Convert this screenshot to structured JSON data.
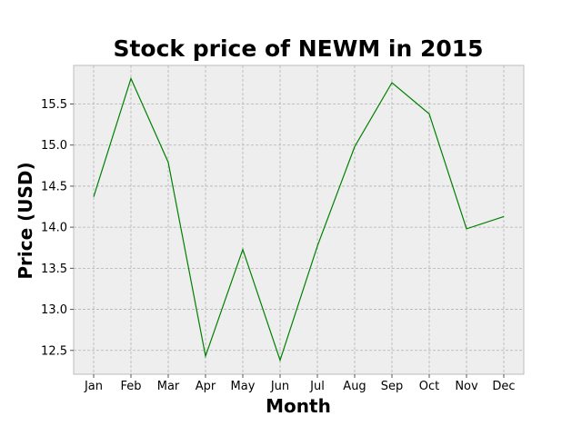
{
  "chart_data": {
    "type": "line",
    "title": "Stock price of NEWM in 2015",
    "xlabel": "Month",
    "ylabel": "Price (USD)",
    "categories": [
      "Jan",
      "Feb",
      "Mar",
      "Apr",
      "May",
      "Jun",
      "Jul",
      "Aug",
      "Sep",
      "Oct",
      "Nov",
      "Dec"
    ],
    "series": [
      {
        "values": [
          14.37,
          15.81,
          14.79,
          12.43,
          13.73,
          12.38,
          13.77,
          14.98,
          15.76,
          15.38,
          13.98,
          14.13
        ],
        "color": "#008000"
      }
    ],
    "ylim": [
      12.21,
      15.97
    ],
    "yticks": [
      "12.5",
      "13.0",
      "13.5",
      "14.0",
      "14.5",
      "15.0",
      "15.5"
    ],
    "grid": true,
    "style": {
      "plot_background": "#eeeeee",
      "grid_color": "#b2b2b2"
    }
  }
}
